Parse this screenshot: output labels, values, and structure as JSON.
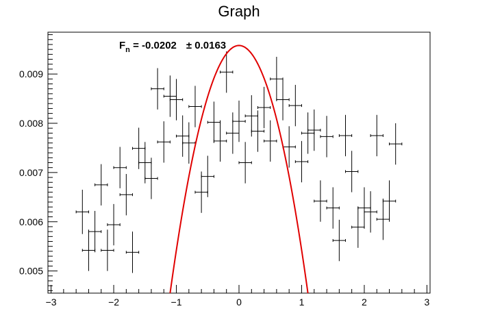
{
  "chart_data": {
    "type": "scatter",
    "title": "Graph",
    "xlabel": "",
    "ylabel": "",
    "xlim": [
      -3.05,
      3.05
    ],
    "ylim": [
      0.00455,
      0.00985
    ],
    "x_ticks": [
      -3,
      -2,
      -1,
      0,
      1,
      2,
      3
    ],
    "x_tick_labels": [
      "−3",
      "−2",
      "−1",
      "0",
      "1",
      "2",
      "3"
    ],
    "y_ticks": [
      0.005,
      0.006,
      0.007,
      0.008,
      0.009
    ],
    "y_tick_labels": [
      "0.005",
      "0.006",
      "0.007",
      "0.008",
      "0.009"
    ],
    "grid": false,
    "annotation": {
      "label_main": "F",
      "label_sub": "n",
      "label_value": " = -0.0202",
      "label_error": "± 0.0163"
    },
    "fit_curve": {
      "color": "#e00000",
      "peak_x": 0.0,
      "peak_y": 0.00958,
      "half_width": 1.1,
      "min_y": 0.00455
    },
    "marker_color": "#000000",
    "x_error": 0.1,
    "points": [
      {
        "x": -2.5,
        "y": 0.0062,
        "ey": 0.00045
      },
      {
        "x": -2.4,
        "y": 0.00542,
        "ey": 0.00042
      },
      {
        "x": -2.3,
        "y": 0.0058,
        "ey": 0.00042
      },
      {
        "x": -2.2,
        "y": 0.00675,
        "ey": 0.00042
      },
      {
        "x": -2.1,
        "y": 0.00542,
        "ey": 0.00042
      },
      {
        "x": -2.0,
        "y": 0.00594,
        "ey": 0.00042
      },
      {
        "x": -1.9,
        "y": 0.0071,
        "ey": 0.00042
      },
      {
        "x": -1.8,
        "y": 0.00655,
        "ey": 0.00042
      },
      {
        "x": -1.7,
        "y": 0.00538,
        "ey": 0.00042
      },
      {
        "x": -1.6,
        "y": 0.00749,
        "ey": 0.00042
      },
      {
        "x": -1.5,
        "y": 0.0072,
        "ey": 0.00042
      },
      {
        "x": -1.4,
        "y": 0.00688,
        "ey": 0.00042
      },
      {
        "x": -1.3,
        "y": 0.0087,
        "ey": 0.00042
      },
      {
        "x": -1.2,
        "y": 0.00762,
        "ey": 0.00042
      },
      {
        "x": -1.1,
        "y": 0.00855,
        "ey": 0.00042
      },
      {
        "x": -1.0,
        "y": 0.00848,
        "ey": 0.00042
      },
      {
        "x": -0.9,
        "y": 0.00774,
        "ey": 0.00042
      },
      {
        "x": -0.8,
        "y": 0.0076,
        "ey": 0.00042
      },
      {
        "x": -0.7,
        "y": 0.00834,
        "ey": 0.00042
      },
      {
        "x": -0.6,
        "y": 0.0066,
        "ey": 0.00042
      },
      {
        "x": -0.5,
        "y": 0.00692,
        "ey": 0.00042
      },
      {
        "x": -0.4,
        "y": 0.00802,
        "ey": 0.00042
      },
      {
        "x": -0.3,
        "y": 0.00764,
        "ey": 0.00042
      },
      {
        "x": -0.2,
        "y": 0.00904,
        "ey": 0.00042
      },
      {
        "x": -0.1,
        "y": 0.0078,
        "ey": 0.00042
      },
      {
        "x": 0.0,
        "y": 0.00804,
        "ey": 0.00042
      },
      {
        "x": 0.1,
        "y": 0.0072,
        "ey": 0.00042
      },
      {
        "x": 0.2,
        "y": 0.00815,
        "ey": 0.00042
      },
      {
        "x": 0.3,
        "y": 0.00784,
        "ey": 0.00042
      },
      {
        "x": 0.4,
        "y": 0.00832,
        "ey": 0.00042
      },
      {
        "x": 0.5,
        "y": 0.00764,
        "ey": 0.00042
      },
      {
        "x": 0.6,
        "y": 0.0089,
        "ey": 0.00045
      },
      {
        "x": 0.7,
        "y": 0.00848,
        "ey": 0.00042
      },
      {
        "x": 0.8,
        "y": 0.00752,
        "ey": 0.00042
      },
      {
        "x": 0.9,
        "y": 0.00836,
        "ey": 0.00042
      },
      {
        "x": 1.0,
        "y": 0.00722,
        "ey": 0.00042
      },
      {
        "x": 1.1,
        "y": 0.0078,
        "ey": 0.00042
      },
      {
        "x": 1.2,
        "y": 0.00786,
        "ey": 0.00042
      },
      {
        "x": 1.3,
        "y": 0.00642,
        "ey": 0.00042
      },
      {
        "x": 1.4,
        "y": 0.00773,
        "ey": 0.00042
      },
      {
        "x": 1.5,
        "y": 0.00628,
        "ey": 0.00042
      },
      {
        "x": 1.6,
        "y": 0.00562,
        "ey": 0.00042
      },
      {
        "x": 1.7,
        "y": 0.00775,
        "ey": 0.00042
      },
      {
        "x": 1.8,
        "y": 0.00702,
        "ey": 0.00042
      },
      {
        "x": 1.9,
        "y": 0.00589,
        "ey": 0.00042
      },
      {
        "x": 2.0,
        "y": 0.00628,
        "ey": 0.00042
      },
      {
        "x": 2.1,
        "y": 0.0062,
        "ey": 0.00042
      },
      {
        "x": 2.2,
        "y": 0.00775,
        "ey": 0.00042
      },
      {
        "x": 2.3,
        "y": 0.00605,
        "ey": 0.00042
      },
      {
        "x": 2.4,
        "y": 0.00642,
        "ey": 0.00042
      },
      {
        "x": 2.5,
        "y": 0.00758,
        "ey": 0.00042
      }
    ]
  }
}
